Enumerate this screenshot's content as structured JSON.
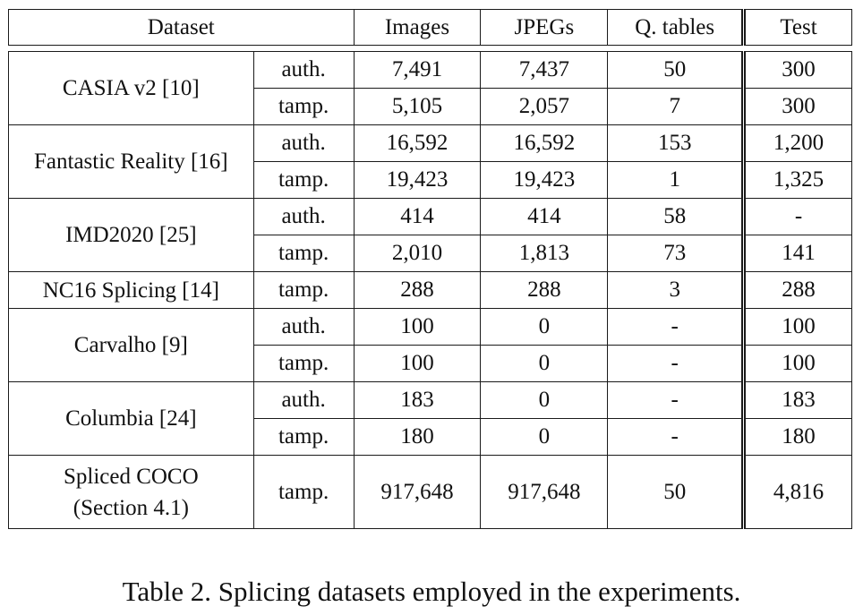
{
  "header": {
    "dataset": "Dataset",
    "images": "Images",
    "jpegs": "JPEGs",
    "qtables": "Q. tables",
    "test": "Test"
  },
  "datasets": [
    {
      "name": "CASIA v2 [10]",
      "rows": [
        {
          "type": "auth.",
          "images": "7,491",
          "jpegs": "7,437",
          "qtables": "50",
          "test": "300"
        },
        {
          "type": "tamp.",
          "images": "5,105",
          "jpegs": "2,057",
          "qtables": "7",
          "test": "300"
        }
      ]
    },
    {
      "name": "Fantastic Reality [16]",
      "rows": [
        {
          "type": "auth.",
          "images": "16,592",
          "jpegs": "16,592",
          "qtables": "153",
          "test": "1,200"
        },
        {
          "type": "tamp.",
          "images": "19,423",
          "jpegs": "19,423",
          "qtables": "1",
          "test": "1,325"
        }
      ]
    },
    {
      "name": "IMD2020 [25]",
      "rows": [
        {
          "type": "auth.",
          "images": "414",
          "jpegs": "414",
          "qtables": "58",
          "test": "-"
        },
        {
          "type": "tamp.",
          "images": "2,010",
          "jpegs": "1,813",
          "qtables": "73",
          "test": "141"
        }
      ]
    },
    {
      "name": "NC16 Splicing [14]",
      "rows": [
        {
          "type": "tamp.",
          "images": "288",
          "jpegs": "288",
          "qtables": "3",
          "test": "288"
        }
      ]
    },
    {
      "name": "Carvalho [9]",
      "rows": [
        {
          "type": "auth.",
          "images": "100",
          "jpegs": "0",
          "qtables": "-",
          "test": "100"
        },
        {
          "type": "tamp.",
          "images": "100",
          "jpegs": "0",
          "qtables": "-",
          "test": "100"
        }
      ]
    },
    {
      "name": "Columbia [24]",
      "rows": [
        {
          "type": "auth.",
          "images": "183",
          "jpegs": "0",
          "qtables": "-",
          "test": "183"
        },
        {
          "type": "tamp.",
          "images": "180",
          "jpegs": "0",
          "qtables": "-",
          "test": "180"
        }
      ]
    },
    {
      "name_lines": [
        "Spliced COCO",
        "(Section 4.1)"
      ],
      "rows": [
        {
          "type": "tamp.",
          "images": "917,648",
          "jpegs": "917,648",
          "qtables": "50",
          "test": "4,816"
        }
      ]
    }
  ],
  "caption": "Table 2. Splicing datasets employed in the experiments."
}
